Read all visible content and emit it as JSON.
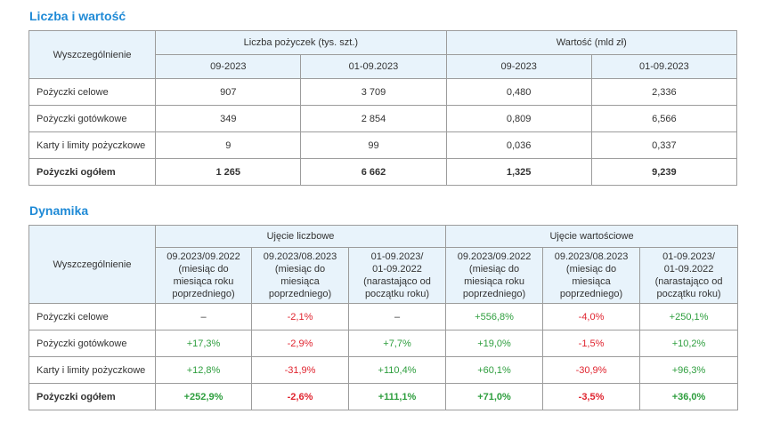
{
  "section1": {
    "title": "Liczba i wartość",
    "header": {
      "row_label": "Wyszczególnienie",
      "group_count": "Liczba pożyczek (tys. szt.)",
      "group_value": "Wartość (mld zł)",
      "periods": [
        "09-2023",
        "01-09.2023",
        "09-2023",
        "01-09.2023"
      ]
    },
    "rows": [
      {
        "label": "Pożyczki celowe",
        "values": [
          "907",
          "3 709",
          "0,480",
          "2,336"
        ]
      },
      {
        "label": "Pożyczki gotówkowe",
        "values": [
          "349",
          "2 854",
          "0,809",
          "6,566"
        ]
      },
      {
        "label": "Karty i limity pożyczkowe",
        "values": [
          "9",
          "99",
          "0,036",
          "0,337"
        ]
      },
      {
        "label": "Pożyczki ogółem",
        "values": [
          "1 265",
          "6 662",
          "1,325",
          "9,239"
        ]
      }
    ]
  },
  "section2": {
    "title": "Dynamika",
    "header": {
      "row_label": "Wyszczególnienie",
      "group_count": "Ujęcie liczbowe",
      "group_value": "Ujęcie wartościowe",
      "periods": [
        {
          "l1": "09.2023/09.2022",
          "l2": "(miesiąc do",
          "l3": "miesiąca roku",
          "l4": "poprzedniego)"
        },
        {
          "l1": "09.2023/08.2023",
          "l2": "(miesiąc do miesiąca",
          "l3": "poprzedniego)",
          "l4": ""
        },
        {
          "l1": "01-09.2023/",
          "l2": "01-09.2022",
          "l3": "(narastająco od",
          "l4": "początku roku)"
        },
        {
          "l1": "09.2023/09.2022",
          "l2": "(miesiąc do",
          "l3": "miesiąca roku",
          "l4": "poprzedniego)"
        },
        {
          "l1": "09.2023/08.2023",
          "l2": "(miesiąc do miesiąca",
          "l3": "poprzedniego)",
          "l4": ""
        },
        {
          "l1": "01-09.2023/",
          "l2": "01-09.2022",
          "l3": "(narastająco od",
          "l4": "początku roku)"
        }
      ]
    },
    "rows": [
      {
        "label": "Pożyczki celowe",
        "values": [
          "–",
          "-2,1%",
          "–",
          "+556,8%",
          "-4,0%",
          "+250,1%"
        ]
      },
      {
        "label": "Pożyczki gotówkowe",
        "values": [
          "+17,3%",
          "-2,9%",
          "+7,7%",
          "+19,0%",
          "-1,5%",
          "+10,2%"
        ]
      },
      {
        "label": "Karty i limity pożyczkowe",
        "values": [
          "+12,8%",
          "-31,9%",
          "+110,4%",
          "+60,1%",
          "-30,9%",
          "+96,3%"
        ]
      },
      {
        "label": "Pożyczki ogółem",
        "values": [
          "+252,9%",
          "-2,6%",
          "+111,1%",
          "+71,0%",
          "-3,5%",
          "+36,0%"
        ]
      }
    ],
    "colors": {
      "positive": "#2e9e3e",
      "negative": "#e0242f"
    }
  }
}
